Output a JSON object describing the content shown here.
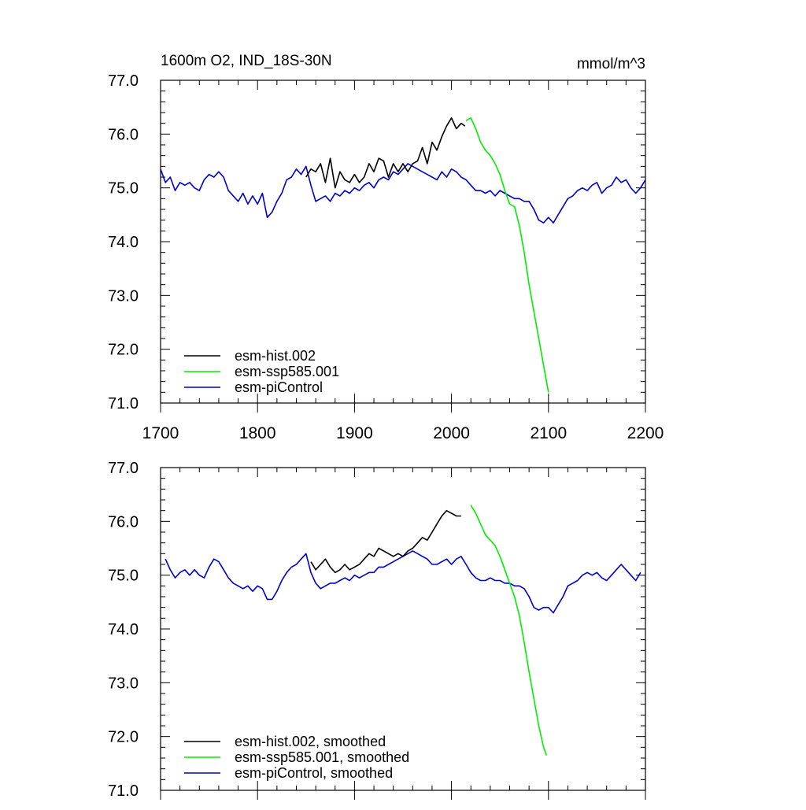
{
  "colors": {
    "hist": "#000000",
    "ssp": "#00ee00",
    "pic": "#0000cc",
    "axis": "#000000"
  },
  "figure": {
    "title": "1600m O2, IND_18S-30N",
    "units": "mmol/m^3"
  },
  "chart_data": [
    {
      "type": "line",
      "panel": "raw",
      "title": "1600m O2, IND_18S-30N",
      "units": "mmol/m^3",
      "xlim": [
        1700,
        2200
      ],
      "ylim": [
        71.0,
        77.0
      ],
      "xticks": [
        1700,
        1800,
        1900,
        2000,
        2100,
        2200
      ],
      "xtick_labels": [
        "1700",
        "1800",
        "1900",
        "2000",
        "2100",
        "2200"
      ],
      "yticks": [
        71.0,
        72.0,
        73.0,
        74.0,
        75.0,
        76.0,
        77.0
      ],
      "ytick_labels": [
        "71.0",
        "72.0",
        "73.0",
        "74.0",
        "75.0",
        "76.0",
        "77.0"
      ],
      "legend_position": "bottom-left",
      "series": [
        {
          "key": "hist",
          "name": "esm-hist.002",
          "x": [
            1850,
            1855,
            1860,
            1865,
            1870,
            1875,
            1880,
            1885,
            1890,
            1895,
            1900,
            1905,
            1910,
            1915,
            1920,
            1925,
            1930,
            1935,
            1940,
            1945,
            1950,
            1955,
            1960,
            1965,
            1970,
            1975,
            1980,
            1985,
            1990,
            1995,
            2000,
            2005,
            2010,
            2014
          ],
          "y": [
            75.2,
            75.35,
            75.3,
            75.45,
            75.1,
            75.55,
            75.0,
            75.3,
            75.15,
            75.1,
            75.25,
            75.1,
            75.2,
            75.45,
            75.3,
            75.55,
            75.5,
            75.2,
            75.45,
            75.3,
            75.45,
            75.3,
            75.45,
            75.5,
            75.75,
            75.45,
            75.85,
            75.7,
            75.95,
            76.15,
            76.3,
            76.1,
            76.2,
            76.15
          ]
        },
        {
          "key": "ssp",
          "name": "esm-ssp585.001",
          "x": [
            2015,
            2020,
            2025,
            2030,
            2035,
            2040,
            2045,
            2050,
            2055,
            2060,
            2065,
            2070,
            2075,
            2080,
            2085,
            2090,
            2095,
            2100
          ],
          "y": [
            76.25,
            76.3,
            76.1,
            75.85,
            75.7,
            75.6,
            75.45,
            75.25,
            74.95,
            74.7,
            74.65,
            74.3,
            73.8,
            73.2,
            72.7,
            72.2,
            71.7,
            71.2
          ]
        },
        {
          "key": "pic",
          "name": "esm-piControl",
          "x": [
            1700,
            1705,
            1710,
            1715,
            1720,
            1725,
            1730,
            1735,
            1740,
            1745,
            1750,
            1755,
            1760,
            1765,
            1770,
            1775,
            1780,
            1785,
            1790,
            1795,
            1800,
            1805,
            1810,
            1815,
            1820,
            1825,
            1830,
            1835,
            1840,
            1845,
            1850,
            1855,
            1860,
            1865,
            1870,
            1875,
            1880,
            1885,
            1890,
            1895,
            1900,
            1905,
            1910,
            1915,
            1920,
            1925,
            1930,
            1935,
            1940,
            1945,
            1950,
            1955,
            1960,
            1965,
            1970,
            1975,
            1980,
            1985,
            1990,
            1995,
            2000,
            2005,
            2010,
            2015,
            2020,
            2025,
            2030,
            2035,
            2040,
            2045,
            2050,
            2055,
            2060,
            2065,
            2070,
            2075,
            2080,
            2085,
            2090,
            2095,
            2100,
            2105,
            2110,
            2115,
            2120,
            2125,
            2130,
            2135,
            2140,
            2145,
            2150,
            2155,
            2160,
            2165,
            2170,
            2175,
            2180,
            2185,
            2190,
            2195,
            2200
          ],
          "y": [
            75.35,
            75.1,
            75.2,
            74.95,
            75.1,
            75.05,
            75.1,
            75.0,
            74.95,
            75.15,
            75.25,
            75.2,
            75.3,
            75.2,
            74.95,
            74.85,
            74.75,
            74.9,
            74.7,
            74.85,
            74.7,
            74.9,
            74.45,
            74.55,
            74.75,
            74.9,
            75.15,
            75.2,
            75.35,
            75.25,
            75.4,
            75.05,
            74.75,
            74.8,
            74.85,
            74.75,
            74.9,
            74.85,
            74.95,
            74.9,
            75.0,
            74.95,
            75.05,
            75.1,
            75.0,
            75.15,
            75.2,
            75.15,
            75.3,
            75.25,
            75.35,
            75.45,
            75.4,
            75.35,
            75.3,
            75.25,
            75.2,
            75.15,
            75.3,
            75.2,
            75.35,
            75.3,
            75.2,
            75.15,
            75.05,
            74.95,
            74.95,
            74.9,
            74.95,
            74.85,
            74.95,
            74.9,
            74.85,
            74.8,
            74.8,
            74.75,
            74.75,
            74.6,
            74.4,
            74.35,
            74.45,
            74.35,
            74.5,
            74.65,
            74.8,
            74.85,
            74.95,
            75.0,
            74.95,
            75.05,
            75.1,
            74.9,
            75.0,
            75.05,
            75.2,
            75.1,
            75.15,
            75.0,
            74.9,
            75.0,
            75.15
          ]
        }
      ]
    },
    {
      "type": "line",
      "panel": "smoothed",
      "xlim": [
        1700,
        2200
      ],
      "ylim": [
        71.0,
        77.0
      ],
      "xticks": [
        1700,
        1800,
        1900,
        2000,
        2100,
        2200
      ],
      "yticks": [
        71.0,
        72.0,
        73.0,
        74.0,
        75.0,
        76.0,
        77.0
      ],
      "ytick_labels": [
        "71.0",
        "72.0",
        "73.0",
        "74.0",
        "75.0",
        "76.0",
        "77.0"
      ],
      "legend_position": "bottom-left",
      "series": [
        {
          "key": "hist",
          "name": "esm-hist.002, smoothed",
          "x": [
            1855,
            1860,
            1865,
            1870,
            1875,
            1880,
            1885,
            1890,
            1895,
            1900,
            1905,
            1910,
            1915,
            1920,
            1925,
            1930,
            1935,
            1940,
            1945,
            1950,
            1955,
            1960,
            1965,
            1970,
            1975,
            1980,
            1985,
            1990,
            1995,
            2000,
            2005,
            2010
          ],
          "y": [
            75.25,
            75.1,
            75.2,
            75.3,
            75.15,
            75.05,
            75.1,
            75.2,
            75.1,
            75.15,
            75.2,
            75.3,
            75.4,
            75.35,
            75.5,
            75.45,
            75.4,
            75.35,
            75.4,
            75.35,
            75.45,
            75.5,
            75.6,
            75.7,
            75.65,
            75.8,
            75.95,
            76.1,
            76.2,
            76.15,
            76.1,
            76.1
          ]
        },
        {
          "key": "ssp",
          "name": "esm-ssp585.001, smoothed",
          "x": [
            2020,
            2025,
            2030,
            2035,
            2040,
            2045,
            2050,
            2055,
            2060,
            2065,
            2070,
            2075,
            2080,
            2085,
            2090,
            2095,
            2098
          ],
          "y": [
            76.3,
            76.15,
            75.95,
            75.75,
            75.65,
            75.55,
            75.35,
            75.1,
            74.85,
            74.6,
            74.25,
            73.75,
            73.2,
            72.7,
            72.2,
            71.8,
            71.65
          ]
        },
        {
          "key": "pic",
          "name": "esm-piControl, smoothed",
          "x": [
            1705,
            1710,
            1715,
            1720,
            1725,
            1730,
            1735,
            1740,
            1745,
            1750,
            1755,
            1760,
            1765,
            1770,
            1775,
            1780,
            1785,
            1790,
            1795,
            1800,
            1805,
            1810,
            1815,
            1820,
            1825,
            1830,
            1835,
            1840,
            1845,
            1850,
            1855,
            1860,
            1865,
            1870,
            1875,
            1880,
            1885,
            1890,
            1895,
            1900,
            1905,
            1910,
            1915,
            1920,
            1925,
            1930,
            1935,
            1940,
            1945,
            1950,
            1955,
            1960,
            1965,
            1970,
            1975,
            1980,
            1985,
            1990,
            1995,
            2000,
            2005,
            2010,
            2015,
            2020,
            2025,
            2030,
            2035,
            2040,
            2045,
            2050,
            2055,
            2060,
            2065,
            2070,
            2075,
            2080,
            2085,
            2090,
            2095,
            2100,
            2105,
            2110,
            2115,
            2120,
            2125,
            2130,
            2135,
            2140,
            2145,
            2150,
            2155,
            2160,
            2165,
            2170,
            2175,
            2180,
            2185,
            2190,
            2195
          ],
          "y": [
            75.3,
            75.1,
            74.95,
            75.05,
            75.1,
            75.0,
            75.1,
            75.0,
            74.95,
            75.15,
            75.3,
            75.25,
            75.1,
            74.95,
            74.85,
            74.8,
            74.75,
            74.8,
            74.7,
            74.8,
            74.75,
            74.55,
            74.55,
            74.7,
            74.9,
            75.05,
            75.15,
            75.2,
            75.3,
            75.4,
            75.05,
            74.85,
            74.75,
            74.8,
            74.85,
            74.85,
            74.9,
            74.95,
            74.9,
            75.0,
            74.95,
            75.0,
            75.05,
            75.05,
            75.15,
            75.15,
            75.2,
            75.25,
            75.3,
            75.35,
            75.4,
            75.45,
            75.4,
            75.35,
            75.3,
            75.2,
            75.2,
            75.25,
            75.3,
            75.2,
            75.3,
            75.35,
            75.2,
            75.05,
            74.95,
            74.9,
            74.9,
            74.95,
            74.9,
            74.9,
            74.85,
            74.85,
            74.8,
            74.8,
            74.75,
            74.6,
            74.4,
            74.35,
            74.4,
            74.4,
            74.3,
            74.45,
            74.6,
            74.8,
            74.85,
            74.9,
            75.0,
            75.05,
            75.0,
            75.05,
            74.95,
            74.9,
            75.0,
            75.1,
            75.2,
            75.1,
            75.0,
            74.9,
            75.05
          ]
        }
      ]
    }
  ]
}
